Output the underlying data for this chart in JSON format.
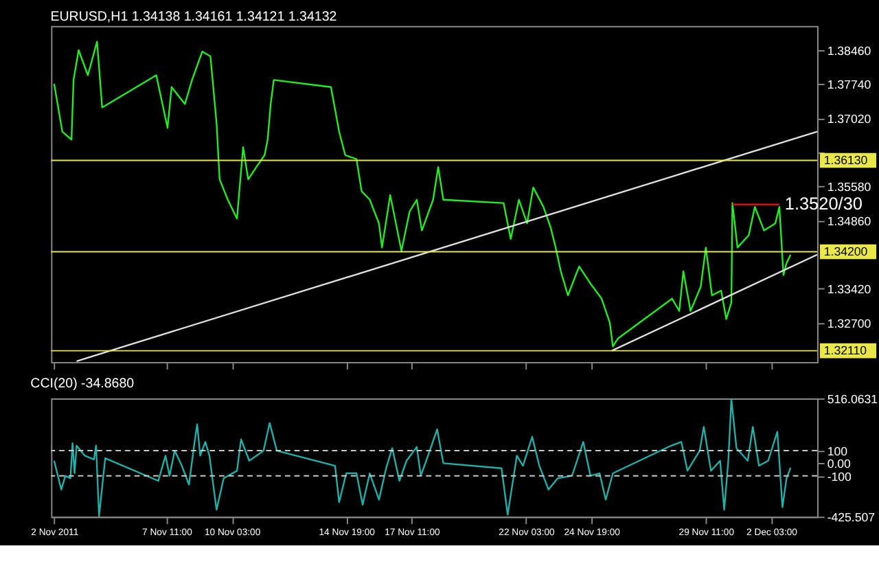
{
  "chart_data": [
    {
      "type": "line",
      "title": "EURUSD,H1  1.34138 1.34161 1.34121 1.34132",
      "xlim": [
        "2011-11-02T18:00",
        "2011-12-04T00:00"
      ],
      "ylim": [
        1.3187,
        1.3897
      ],
      "tick_labels": "y",
      "grid": false,
      "xticks": [
        {
          "value": "2011-11-02T21:00",
          "label": null
        },
        {
          "value": "2011-11-07T11:00",
          "label": null
        },
        {
          "value": "2011-11-10T03:00",
          "label": null
        },
        {
          "value": "2011-11-14T19:00",
          "label": null
        },
        {
          "value": "2011-11-17T11:00",
          "label": null
        },
        {
          "value": "2011-11-22T03:00",
          "label": null
        },
        {
          "value": "2011-11-24T19:00",
          "label": null
        },
        {
          "value": "2011-11-29T11:00",
          "label": null
        },
        {
          "value": "2011-12-02T03:00",
          "label": null
        }
      ],
      "yticks": [
        {
          "value": 1.3846,
          "label": "1.38460"
        },
        {
          "value": 1.3774,
          "label": "1.37740"
        },
        {
          "value": 1.3702,
          "label": "1.37020"
        },
        {
          "value": 1.363,
          "label": null
        },
        {
          "value": 1.3558,
          "label": "1.35580"
        },
        {
          "value": 1.3486,
          "label": "1.34860"
        },
        {
          "value": 1.3342,
          "label": "1.33420"
        },
        {
          "value": 1.327,
          "label": "1.32700"
        }
      ],
      "series": [
        {
          "color": "#22ee22",
          "x": [
            "2011-11-02T21:00",
            "2011-11-03T05:00",
            "2011-11-03T14:00",
            "2011-11-03T16:00",
            "2011-11-03T21:00",
            "2011-11-04T06:00",
            "2011-11-04T15:00",
            "2011-11-04T20:00",
            "2011-11-07T01:00",
            "2011-11-07T12:00",
            "2011-11-07T16:00",
            "2011-11-08T05:00",
            "2011-11-08T12:00",
            "2011-11-08T22:00",
            "2011-11-09T06:00",
            "2011-11-09T12:00",
            "2011-11-09T15:00",
            "2011-11-09T23:00",
            "2011-11-10T08:00",
            "2011-11-10T14:00",
            "2011-11-10T19:00",
            "2011-11-11T03:00",
            "2011-11-11T11:00",
            "2011-11-11T14:00",
            "2011-11-11T17:00",
            "2011-11-11T20:00",
            "2011-11-14T04:00",
            "2011-11-14T12:00",
            "2011-11-14T18:00",
            "2011-11-15T05:00",
            "2011-11-15T10:00",
            "2011-11-15T18:00",
            "2011-11-16T03:00",
            "2011-11-16T06:00",
            "2011-11-16T14:00",
            "2011-11-17T01:00",
            "2011-11-17T09:00",
            "2011-11-17T16:00",
            "2011-11-17T21:00",
            "2011-11-18T08:00",
            "2011-11-18T13:00",
            "2011-11-18T18:00",
            "2011-11-21T05:00",
            "2011-11-21T12:00",
            "2011-11-21T20:00",
            "2011-11-22T04:00",
            "2011-11-22T10:00",
            "2011-11-22T20:00",
            "2011-11-23T03:00",
            "2011-11-23T08:00",
            "2011-11-23T13:00",
            "2011-11-23T20:00",
            "2011-11-24T07:00",
            "2011-11-24T18:00",
            "2011-11-25T05:00",
            "2011-11-25T13:00",
            "2011-11-25T16:00",
            "2011-11-25T21:00",
            "2011-11-28T02:00",
            "2011-11-28T09:00",
            "2011-11-28T13:00",
            "2011-11-28T20:00",
            "2011-11-29T06:00",
            "2011-11-29T11:00",
            "2011-11-29T17:00",
            "2011-11-30T02:00",
            "2011-11-30T07:00",
            "2011-11-30T12:00",
            "2011-11-30T13:00",
            "2011-11-30T18:00",
            "2011-12-01T05:00",
            "2011-12-01T11:00",
            "2011-12-01T20:00",
            "2011-12-02T07:00",
            "2011-12-02T11:00",
            "2011-12-02T15:00",
            "2011-12-02T18:00",
            "2011-12-02T22:00"
          ],
          "values": [
            1.3775,
            1.3674,
            1.3657,
            1.3783,
            1.3846,
            1.3793,
            1.3864,
            1.3725,
            1.3793,
            1.3682,
            1.3768,
            1.3732,
            1.3783,
            1.3843,
            1.3833,
            1.3692,
            1.3573,
            1.353,
            1.349,
            1.3641,
            1.3573,
            1.3599,
            1.3624,
            1.3657,
            1.3732,
            1.3783,
            1.3768,
            1.3674,
            1.3624,
            1.3616,
            1.3548,
            1.353,
            1.348,
            1.3429,
            1.354,
            1.3422,
            1.3505,
            1.353,
            1.3465,
            1.353,
            1.3599,
            1.353,
            1.3523,
            1.3447,
            1.353,
            1.348,
            1.3556,
            1.3515,
            1.3472,
            1.3429,
            1.3379,
            1.3328,
            1.3389,
            1.3353,
            1.3321,
            1.327,
            1.322,
            1.3237,
            1.3321,
            1.3295,
            1.3379,
            1.3295,
            1.3346,
            1.3429,
            1.3328,
            1.3338,
            1.3278,
            1.3313,
            1.3523,
            1.3429,
            1.3455,
            1.3515,
            1.3465,
            1.348,
            1.3515,
            1.3371,
            1.3396,
            1.3414
          ]
        },
        {
          "type": "line",
          "color": "#e0e0e0",
          "x": [
            "2011-11-03T19:00",
            "2011-12-04T00:00"
          ],
          "values": [
            1.3189,
            1.3674
          ]
        },
        {
          "type": "line",
          "color": "#e0e0e0",
          "x": [
            "2011-11-25T15:00",
            "2011-12-04T00:00"
          ],
          "values": [
            1.3211,
            1.3414
          ]
        },
        {
          "type": "line",
          "color": "#ee1111",
          "x": [
            "2011-11-30T13:00",
            "2011-12-02T11:00"
          ],
          "values": [
            1.352,
            1.352
          ]
        }
      ],
      "ref_lines": [
        {
          "axis": "y",
          "value": 1.3613,
          "label": "1.36130",
          "color": "#e8e84a"
        },
        {
          "axis": "y",
          "value": 1.342,
          "label": "1.34200",
          "color": "#e8e84a"
        },
        {
          "axis": "y",
          "value": 1.3211,
          "label": "1.32110",
          "color": "#e8e84a"
        }
      ],
      "annotations": [
        {
          "text": "1.3520/30",
          "x": "2011-12-02T11:00",
          "y": 1.352
        }
      ]
    },
    {
      "type": "line",
      "title": "CCI(20) -34.8680",
      "xlim": [
        "2011-11-02T18:00",
        "2011-12-04T00:00"
      ],
      "ylim": [
        -425.507,
        516.0631
      ],
      "grid": false,
      "yticks": [
        {
          "value": 516.0631,
          "label": "516.0631"
        },
        {
          "value": 100,
          "label": "100"
        },
        {
          "value": 0,
          "label": "0.00"
        },
        {
          "value": -100,
          "label": "-100"
        },
        {
          "value": -425.507,
          "label": "-425.507"
        }
      ],
      "xticks": [
        {
          "value": "2011-11-02T21:00",
          "label": "2 Nov 2011"
        },
        {
          "value": "2011-11-07T11:00",
          "label": "7 Nov 11:00"
        },
        {
          "value": "2011-11-10T03:00",
          "label": "10 Nov 03:00"
        },
        {
          "value": "2011-11-14T19:00",
          "label": "14 Nov 19:00"
        },
        {
          "value": "2011-11-17T11:00",
          "label": "17 Nov 11:00"
        },
        {
          "value": "2011-11-22T03:00",
          "label": "22 Nov 03:00"
        },
        {
          "value": "2011-11-24T19:00",
          "label": "24 Nov 19:00"
        },
        {
          "value": "2011-11-29T11:00",
          "label": "29 Nov 11:00"
        },
        {
          "value": "2011-12-02T03:00",
          "label": "2 Dec 03:00"
        }
      ],
      "series": [
        {
          "color": "#20b2aa",
          "x": [
            "2011-11-02T21:00",
            "2011-11-03T04:00",
            "2011-11-03T08:00",
            "2011-11-03T13:00",
            "2011-11-03T15:00",
            "2011-11-03T17:00",
            "2011-11-03T19:00",
            "2011-11-04T03:00",
            "2011-11-04T12:00",
            "2011-11-04T14:00",
            "2011-11-04T17:00",
            "2011-11-04T23:00",
            "2011-11-07T03:00",
            "2011-11-07T10:00",
            "2011-11-07T14:00",
            "2011-11-07T19:00",
            "2011-11-08T02:00",
            "2011-11-08T09:00",
            "2011-11-08T14:00",
            "2011-11-08T17:00",
            "2011-11-08T20:00",
            "2011-11-09T01:00",
            "2011-11-09T05:00",
            "2011-11-09T12:00",
            "2011-11-09T19:00",
            "2011-11-10T08:00",
            "2011-11-10T12:00",
            "2011-11-10T20:00",
            "2011-11-11T03:00",
            "2011-11-11T10:00",
            "2011-11-11T16:00",
            "2011-11-11T23:00",
            "2011-11-14T08:00",
            "2011-11-14T12:00",
            "2011-11-14T19:00",
            "2011-11-15T05:00",
            "2011-11-15T11:00",
            "2011-11-15T18:00",
            "2011-11-16T03:00",
            "2011-11-16T10:00",
            "2011-11-16T16:00",
            "2011-11-16T23:00",
            "2011-11-17T06:00",
            "2011-11-17T16:00",
            "2011-11-17T20:00",
            "2011-11-18T03:00",
            "2011-11-18T12:00",
            "2011-11-18T18:00",
            "2011-11-21T03:00",
            "2011-11-21T09:00",
            "2011-11-21T18:00",
            "2011-11-22T00:00",
            "2011-11-22T09:00",
            "2011-11-22T16:00",
            "2011-11-23T01:00",
            "2011-11-23T10:00",
            "2011-11-24T00:00",
            "2011-11-24T11:00",
            "2011-11-24T18:00",
            "2011-11-25T03:00",
            "2011-11-25T09:00",
            "2011-11-25T16:00",
            "2011-11-28T01:00",
            "2011-11-28T11:00",
            "2011-11-28T17:00",
            "2011-11-29T05:00",
            "2011-11-29T09:00",
            "2011-11-29T16:00",
            "2011-11-30T01:00",
            "2011-11-30T05:00",
            "2011-11-30T09:00",
            "2011-11-30T12:00",
            "2011-11-30T17:00",
            "2011-12-01T04:00",
            "2011-12-01T09:00",
            "2011-12-01T15:00",
            "2011-12-02T00:00",
            "2011-12-02T09:00",
            "2011-12-02T14:00",
            "2011-12-02T18:00",
            "2011-12-02T22:00"
          ],
          "values": [
            20,
            -210,
            -100,
            -120,
            160,
            -80,
            140,
            60,
            30,
            140,
            -420,
            40,
            -140,
            60,
            -100,
            100,
            -20,
            -170,
            140,
            310,
            60,
            170,
            60,
            -370,
            -120,
            -60,
            190,
            20,
            60,
            100,
            320,
            100,
            -20,
            -310,
            -80,
            -80,
            -330,
            -80,
            -290,
            -40,
            120,
            -140,
            20,
            130,
            -100,
            60,
            270,
            0,
            -40,
            -410,
            60,
            -20,
            210,
            -20,
            -210,
            -120,
            -100,
            170,
            -100,
            -80,
            -290,
            -80,
            140,
            170,
            -60,
            100,
            290,
            -60,
            20,
            -370,
            20,
            510,
            120,
            20,
            290,
            -20,
            20,
            250,
            -350,
            -120,
            -35
          ]
        }
      ],
      "ref_lines": [
        {
          "axis": "y",
          "value": 100,
          "color": "#c8c8c8",
          "line_style": "dashed"
        },
        {
          "axis": "y",
          "value": -100,
          "color": "#c8c8c8",
          "line_style": "dashed"
        }
      ]
    }
  ]
}
